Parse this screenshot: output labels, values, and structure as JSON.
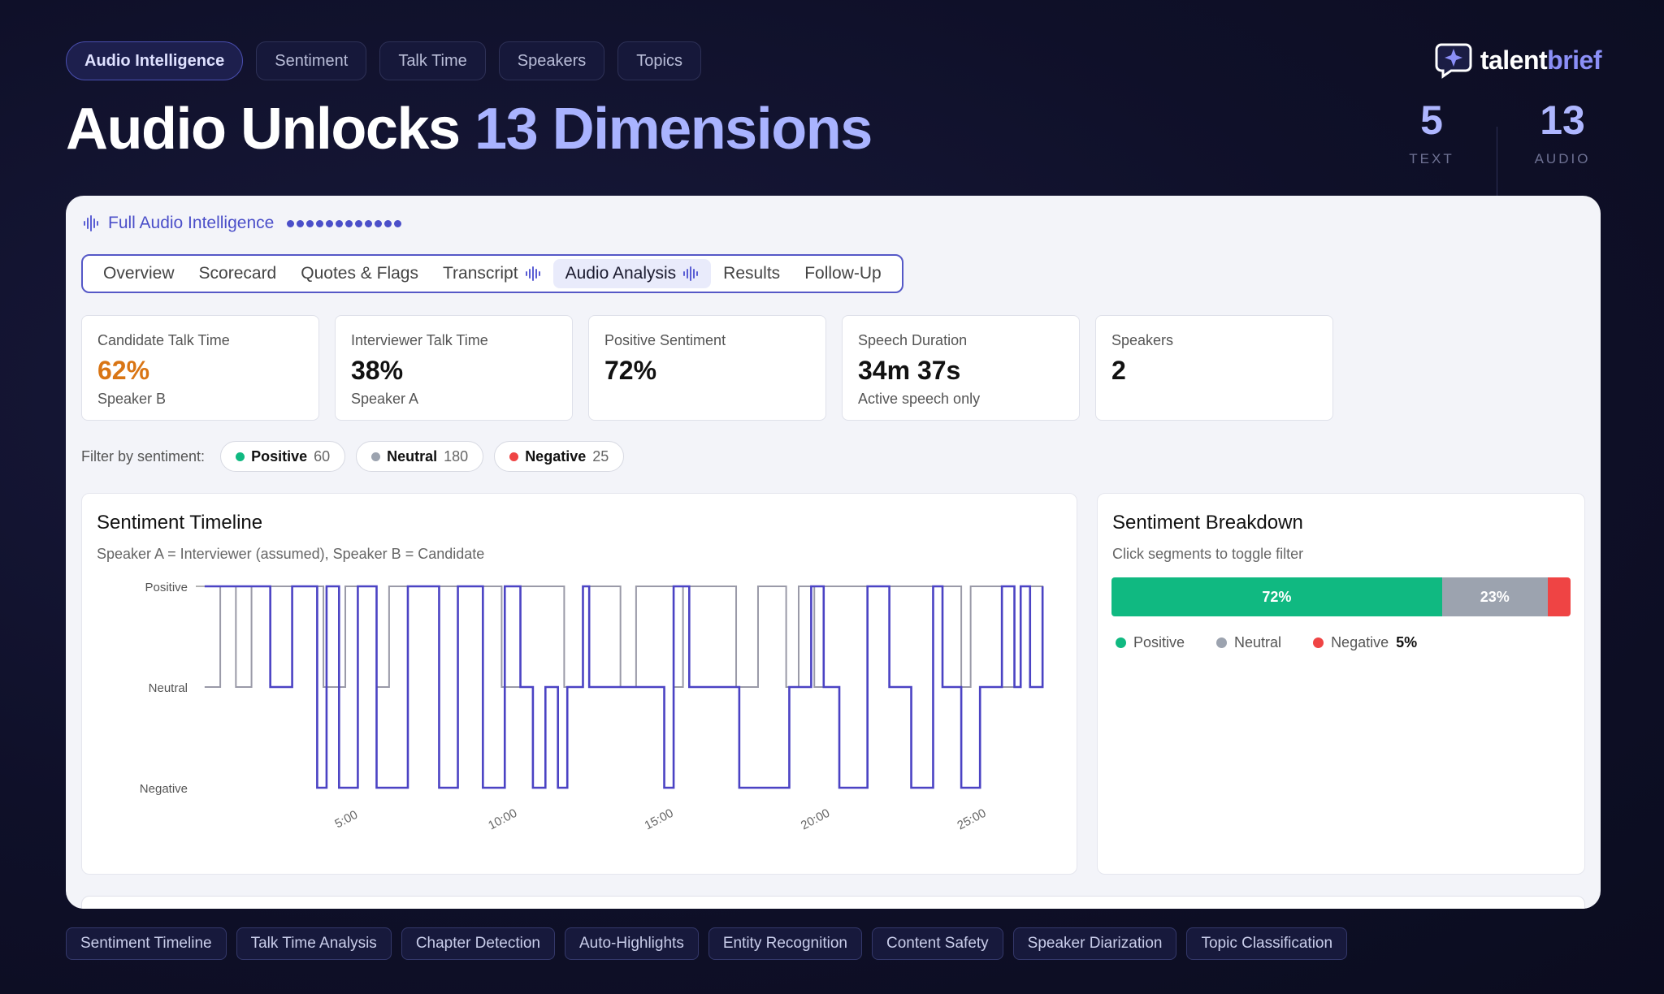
{
  "topnav": [
    "Audio Intelligence",
    "Sentiment",
    "Talk Time",
    "Speakers",
    "Topics"
  ],
  "brand": {
    "name_part1": "talent",
    "name_part2": "brief",
    "logo_icon": "chat-sparkle-icon"
  },
  "headline": {
    "part1": "Audio Unlocks ",
    "part2": "13 Dimensions"
  },
  "stats": [
    {
      "value": "5",
      "label": "TEXT"
    },
    {
      "value": "13",
      "label": "AUDIO"
    }
  ],
  "panel": {
    "title": "Full Audio Intelligence",
    "title_icon": "waveform-icon",
    "tabs": [
      {
        "label": "Overview",
        "active": false,
        "icon": false
      },
      {
        "label": "Scorecard",
        "active": false,
        "icon": false
      },
      {
        "label": "Quotes & Flags",
        "active": false,
        "icon": false
      },
      {
        "label": "Transcript",
        "active": false,
        "icon": true
      },
      {
        "label": "Audio Analysis",
        "active": true,
        "icon": true
      },
      {
        "label": "Results",
        "active": false,
        "icon": false
      },
      {
        "label": "Follow-Up",
        "active": false,
        "icon": false
      }
    ],
    "metrics": [
      {
        "label": "Candidate Talk Time",
        "value": "62%",
        "sub": "Speaker B"
      },
      {
        "label": "Interviewer Talk Time",
        "value": "38%",
        "sub": "Speaker A"
      },
      {
        "label": "Positive Sentiment",
        "value": "72%",
        "sub": ""
      },
      {
        "label": "Speech Duration",
        "value": "34m 37s",
        "sub": "Active speech only"
      },
      {
        "label": "Speakers",
        "value": "2",
        "sub": ""
      }
    ],
    "filter": {
      "label": "Filter by sentiment:",
      "chips": [
        {
          "name": "Positive",
          "count": "60",
          "color": "#10b981"
        },
        {
          "name": "Neutral",
          "count": "180",
          "color": "#9ca3af"
        },
        {
          "name": "Negative",
          "count": "25",
          "color": "#ef4444"
        }
      ]
    },
    "timeline": {
      "title": "Sentiment Timeline",
      "subtitle": "Speaker A = Interviewer (assumed), Speaker B = Candidate"
    },
    "breakdown": {
      "title": "Sentiment Breakdown",
      "subtitle": "Click segments to toggle filter",
      "legend": [
        {
          "name": "Positive",
          "pct": "",
          "color": "#10b981"
        },
        {
          "name": "Neutral",
          "pct": "",
          "color": "#9ca3af"
        },
        {
          "name": "Negative",
          "pct": "5%",
          "color": "#ef4444"
        }
      ]
    }
  },
  "chart_data": [
    {
      "type": "line",
      "title": "Sentiment Timeline",
      "subtitle": "Speaker A = Interviewer (assumed), Speaker B = Candidate",
      "y_categories": [
        "Negative",
        "Neutral",
        "Positive"
      ],
      "x_ticks": [
        "5:00",
        "10:00",
        "15:00",
        "20:00",
        "25:00"
      ],
      "x_range_min": [
        0,
        27
      ],
      "series": [
        {
          "color": "#9a9aa8",
          "steps": [
            [
              0.1,
              1
            ],
            [
              0.6,
              2
            ],
            [
              1.1,
              1
            ],
            [
              1.6,
              2
            ],
            [
              3.9,
              1
            ],
            [
              4.6,
              2
            ],
            [
              5.6,
              1
            ],
            [
              6.0,
              2
            ],
            [
              9.6,
              1
            ],
            [
              10.2,
              2
            ],
            [
              11.6,
              1
            ],
            [
              12.2,
              2
            ],
            [
              13.4,
              1
            ],
            [
              13.9,
              2
            ],
            [
              15.1,
              1
            ],
            [
              15.4,
              2
            ],
            [
              17.1,
              1
            ],
            [
              17.8,
              2
            ],
            [
              18.7,
              1
            ],
            [
              19.1,
              2
            ],
            [
              19.6,
              1
            ],
            [
              19.9,
              2
            ],
            [
              24.3,
              1
            ],
            [
              24.6,
              2
            ],
            [
              25.6,
              1
            ],
            [
              26.2,
              2
            ],
            [
              26.9,
              1
            ]
          ]
        },
        {
          "color": "#4b43c4",
          "steps": [
            [
              0.1,
              2
            ],
            [
              2.2,
              1
            ],
            [
              2.9,
              2
            ],
            [
              3.7,
              0
            ],
            [
              4.0,
              2
            ],
            [
              4.4,
              0
            ],
            [
              5.0,
              2
            ],
            [
              5.6,
              0
            ],
            [
              6.6,
              2
            ],
            [
              7.6,
              0
            ],
            [
              8.2,
              2
            ],
            [
              9.0,
              0
            ],
            [
              9.7,
              2
            ],
            [
              10.2,
              1
            ],
            [
              10.6,
              0
            ],
            [
              11.0,
              1
            ],
            [
              11.4,
              0
            ],
            [
              11.7,
              1
            ],
            [
              12.2,
              2
            ],
            [
              12.4,
              1
            ],
            [
              13.4,
              1
            ],
            [
              14.8,
              0
            ],
            [
              15.1,
              2
            ],
            [
              15.6,
              1
            ],
            [
              17.2,
              0
            ],
            [
              18.8,
              1
            ],
            [
              19.5,
              2
            ],
            [
              19.9,
              1
            ],
            [
              20.4,
              0
            ],
            [
              21.3,
              2
            ],
            [
              22.0,
              1
            ],
            [
              22.7,
              0
            ],
            [
              23.4,
              2
            ],
            [
              23.7,
              1
            ],
            [
              24.3,
              0
            ],
            [
              24.9,
              1
            ],
            [
              25.6,
              2
            ],
            [
              26.0,
              1
            ],
            [
              26.2,
              2
            ],
            [
              26.5,
              1
            ],
            [
              26.9,
              2
            ]
          ]
        }
      ]
    },
    {
      "type": "bar",
      "title": "Sentiment Breakdown",
      "orientation": "stacked-horizontal",
      "categories": [
        "Positive",
        "Neutral",
        "Negative"
      ],
      "values": [
        72,
        23,
        5
      ],
      "labels": [
        "72%",
        "23%",
        ""
      ],
      "colors": [
        "#10b981",
        "#9ca3af",
        "#ef4444"
      ]
    }
  ],
  "tags": [
    "Sentiment Timeline",
    "Talk Time Analysis",
    "Chapter Detection",
    "Auto-Highlights",
    "Entity Recognition",
    "Content Safety",
    "Speaker Diarization",
    "Topic Classification"
  ]
}
